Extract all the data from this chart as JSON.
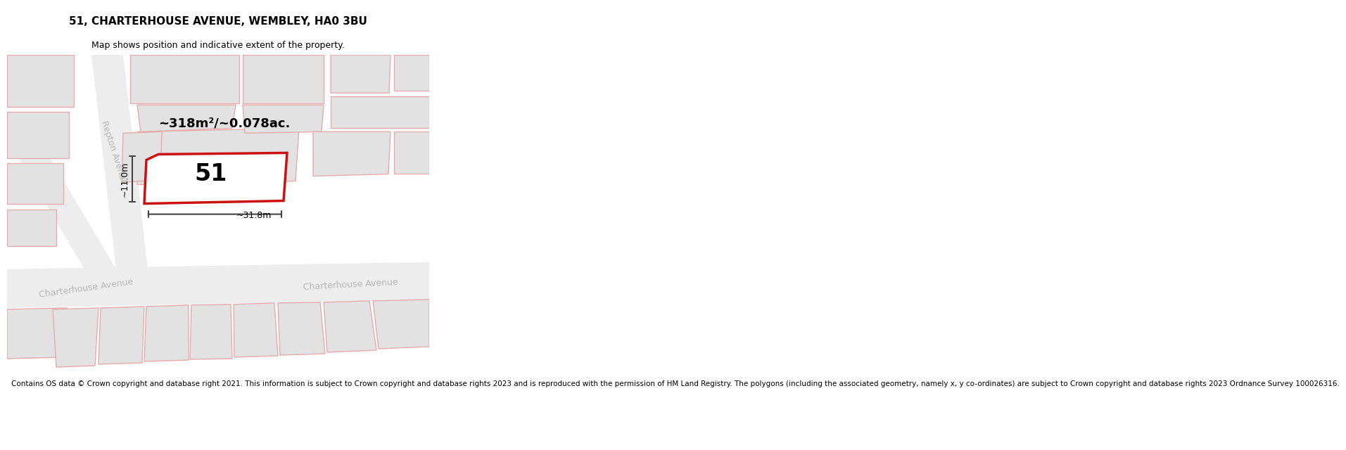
{
  "title": "51, CHARTERHOUSE AVENUE, WEMBLEY, HA0 3BU",
  "subtitle": "Map shows position and indicative extent of the property.",
  "footer": "Contains OS data © Crown copyright and database right 2021. This information is subject to Crown copyright and database rights 2023 and is reproduced with the permission of HM Land Registry. The polygons (including the associated geometry, namely x, y co-ordinates) are subject to Crown copyright and database rights 2023 Ordnance Survey 100026316.",
  "area_label": "~318m²/~0.078ac.",
  "number_label": "51",
  "width_label": "~31.8m",
  "height_label": "~11.0m",
  "road_label_ch_left": "Charterhouse Avenue",
  "road_label_ch_right": "Charterhouse Avenue",
  "road_label_repton": "Repton Avenue",
  "bg_color": "#ffffff",
  "map_bg": "#f5f5f5",
  "building_fill": "#e2e2e2",
  "building_edge_red": "#e8aaaa",
  "road_fill": "#f0f0f0",
  "highlight_fill": "#ffffff",
  "highlight_edge": "#cc1111",
  "road_label_color": "#b8b8b8",
  "dim_color": "#444444",
  "title_fontsize": 11,
  "subtitle_fontsize": 9,
  "area_fontsize": 13,
  "number_fontsize": 24,
  "dim_fontsize": 9,
  "road_fontsize": 9,
  "footer_fontsize": 7.5
}
